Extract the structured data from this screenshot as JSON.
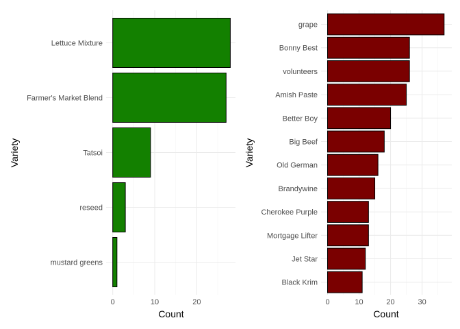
{
  "chart_data": [
    {
      "type": "bar",
      "orientation": "horizontal",
      "categories": [
        "Lettuce Mixture",
        "Farmer's Market Blend",
        "Tatsoi",
        "reseed",
        "mustard greens"
      ],
      "values": [
        28,
        27,
        9,
        3,
        1
      ],
      "xlabel": "Count",
      "ylabel": "Variety",
      "xlim": [
        0,
        28
      ],
      "xticks": [
        0,
        10,
        20
      ],
      "grid": true,
      "bar_color": "#138000"
    },
    {
      "type": "bar",
      "orientation": "horizontal",
      "categories": [
        "grape",
        "Bonny Best",
        "volunteers",
        "Amish Paste",
        "Better Boy",
        "Big Beef",
        "Old German",
        "Brandywine",
        "Cherokee Purple",
        "Mortgage Lifter",
        "Jet Star",
        "Black Krim"
      ],
      "values": [
        37,
        26,
        26,
        25,
        20,
        18,
        16,
        15,
        13,
        13,
        12,
        11
      ],
      "xlabel": "Count",
      "ylabel": "Variety",
      "xlim": [
        0,
        37
      ],
      "xticks": [
        0,
        10,
        20,
        30
      ],
      "grid": true,
      "bar_color": "#7a0000"
    }
  ]
}
